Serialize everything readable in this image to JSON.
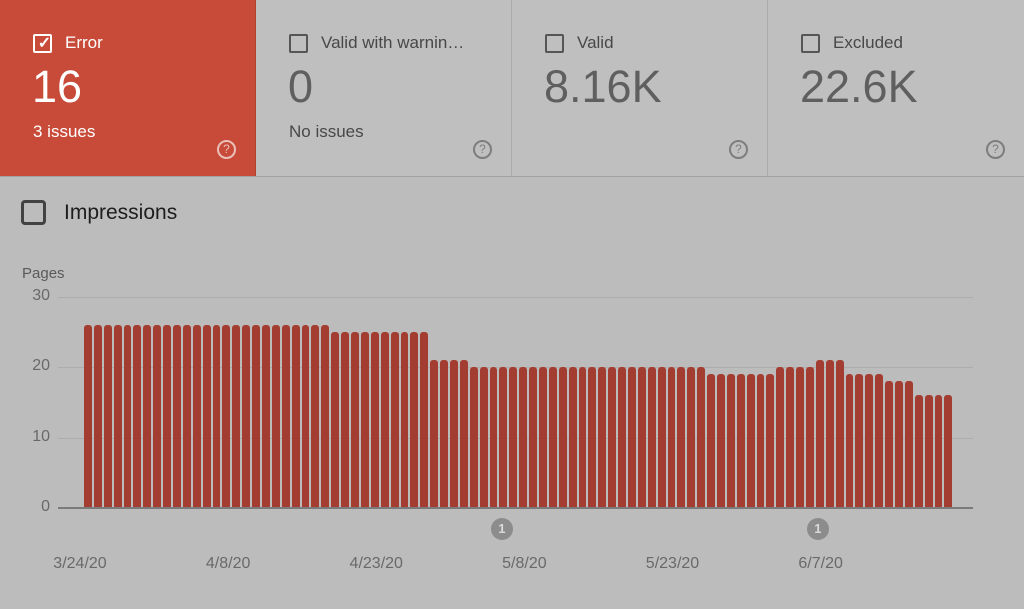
{
  "cards": [
    {
      "label": "Error",
      "value": "16",
      "sub": "3 issues",
      "checked": true,
      "selected": true
    },
    {
      "label": "Valid with warnin…",
      "value": "0",
      "sub": "No issues",
      "checked": false,
      "selected": false
    },
    {
      "label": "Valid",
      "value": "8.16K",
      "sub": "",
      "checked": false,
      "selected": false
    },
    {
      "label": "Excluded",
      "value": "22.6K",
      "sub": "",
      "checked": false,
      "selected": false
    }
  ],
  "help_icon_glyph": "?",
  "checkmark_glyph": "✓",
  "impressions": {
    "label": "Impressions",
    "checked": false
  },
  "colors": {
    "error_card": "#c74b38",
    "bar": "#a43d31",
    "card_bg": "#bfbfbf",
    "page_bg": "#bcbcbc",
    "marker": "#8c8c8c"
  },
  "chart_data": {
    "type": "bar",
    "title": "",
    "ylabel": "Pages",
    "xlabel": "",
    "ylim": [
      0,
      30
    ],
    "yticks": [
      0,
      10,
      20,
      30
    ],
    "grid": true,
    "legend": false,
    "x_start_date": "3/24/20",
    "x_step_days": 1,
    "xtick_labels": [
      "3/24/20",
      "4/8/20",
      "4/23/20",
      "5/8/20",
      "5/23/20",
      "6/7/20"
    ],
    "series": [
      {
        "name": "Error",
        "values": [
          26,
          26,
          26,
          26,
          26,
          26,
          26,
          26,
          26,
          26,
          26,
          26,
          26,
          26,
          26,
          26,
          26,
          26,
          26,
          26,
          26,
          26,
          26,
          26,
          26,
          25,
          25,
          25,
          25,
          25,
          25,
          25,
          25,
          25,
          25,
          21,
          21,
          21,
          21,
          20,
          20,
          20,
          20,
          20,
          20,
          20,
          20,
          20,
          20,
          20,
          20,
          20,
          20,
          20,
          20,
          20,
          20,
          20,
          20,
          20,
          20,
          20,
          20,
          19,
          19,
          19,
          19,
          19,
          19,
          19,
          20,
          20,
          20,
          20,
          21,
          21,
          21,
          19,
          19,
          19,
          19,
          18,
          18,
          18,
          16,
          16,
          16,
          16
        ]
      }
    ],
    "annotations": [
      {
        "label": "1",
        "index": 41
      },
      {
        "label": "1",
        "index": 73
      }
    ]
  }
}
